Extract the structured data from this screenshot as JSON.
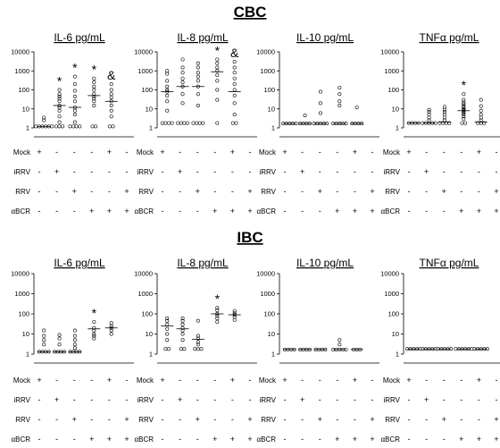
{
  "figure": {
    "sections": [
      {
        "title": "CBC"
      },
      {
        "title": "IBC"
      }
    ],
    "condition_rows": [
      {
        "label": "Mock",
        "signs": [
          "+",
          "-",
          "-",
          "-",
          "+",
          "-"
        ]
      },
      {
        "label": "iRRV",
        "signs": [
          "-",
          "+",
          "-",
          "-",
          "-",
          "-"
        ]
      },
      {
        "label": "RRV",
        "signs": [
          "-",
          "-",
          "+",
          "-",
          "-",
          "+"
        ]
      },
      {
        "label": "αBCR",
        "signs": [
          "-",
          "-",
          "-",
          "+",
          "+",
          "+"
        ]
      }
    ]
  },
  "chart_data": [
    {
      "type": "scatter",
      "section": "CBC",
      "title": "IL-6 pg/mL",
      "scale": "log",
      "yticks": [
        "1",
        "10",
        "100",
        "1000",
        "10000"
      ],
      "ylim": [
        1,
        10000
      ],
      "groups": [
        {
          "points": [
            1.2,
            1.2,
            1.2,
            1.2,
            1.2,
            1.2,
            2.5,
            3.5
          ],
          "median": 1.2
        },
        {
          "points": [
            1.2,
            1.2,
            1.2,
            2,
            4,
            8,
            12,
            15,
            25,
            35,
            45,
            60,
            100
          ],
          "median": 15
        },
        {
          "points": [
            1.2,
            1.2,
            1.2,
            1.2,
            2,
            5,
            8,
            12,
            25,
            45,
            90,
            200,
            500
          ],
          "median": 12
        },
        {
          "points": [
            1.2,
            1.2,
            15,
            25,
            35,
            45,
            60,
            100,
            150,
            250,
            400
          ],
          "median": 50
        },
        {
          "points": [
            1.2,
            1.2,
            4,
            8,
            15,
            25,
            40,
            60,
            100,
            200
          ],
          "median": 25
        }
      ],
      "annotations": [
        {
          "group": 2,
          "text": "*"
        },
        {
          "group": 3,
          "text": "*"
        },
        {
          "group": 4,
          "text": "*"
        },
        {
          "group": 5,
          "text": "&"
        }
      ]
    },
    {
      "type": "scatter",
      "section": "CBC",
      "title": "IL-8 pg/mL",
      "scale": "log",
      "yticks": [
        "1",
        "10",
        "100",
        "1000",
        "10000"
      ],
      "ylim": [
        1,
        10000
      ],
      "groups": [
        {
          "points": [
            1.8,
            1.8,
            1.8,
            1.8,
            8,
            25,
            50,
            80,
            100,
            150,
            300,
            700,
            1000
          ],
          "median": 80
        },
        {
          "points": [
            1.8,
            1.8,
            1.8,
            1.8,
            20,
            60,
            150,
            250,
            400,
            800,
            1500,
            4000
          ],
          "median": 150
        },
        {
          "points": [
            1.8,
            1.8,
            1.8,
            1.8,
            15,
            60,
            150,
            300,
            500,
            800,
            1500,
            2500
          ],
          "median": 150
        },
        {
          "points": [
            1.8,
            30,
            100,
            300,
            600,
            1000,
            1500,
            2500,
            4000
          ],
          "median": 900
        },
        {
          "points": [
            1.8,
            1.8,
            5,
            20,
            50,
            100,
            200,
            400,
            800,
            1500,
            3000
          ],
          "median": 80
        }
      ],
      "annotations": [
        {
          "group": 4,
          "text": "*"
        },
        {
          "group": 5,
          "text": "&"
        }
      ]
    },
    {
      "type": "scatter",
      "section": "CBC",
      "title": "IL-10 pg/mL",
      "scale": "log",
      "yticks": [
        "1",
        "10",
        "100",
        "1000",
        "10000"
      ],
      "ylim": [
        1,
        10000
      ],
      "groups": [
        {
          "points": [
            1.7,
            1.7,
            1.7,
            1.7,
            1.7
          ],
          "median": 1.7
        },
        {
          "points": [
            1.7,
            1.7,
            1.7,
            1.7,
            4.5
          ],
          "median": 1.7
        },
        {
          "points": [
            1.7,
            1.7,
            1.7,
            1.7,
            1.7,
            6,
            20,
            80
          ],
          "median": 1.7
        },
        {
          "points": [
            1.7,
            1.7,
            1.7,
            1.7,
            1.7,
            15,
            25,
            60,
            130
          ],
          "median": 1.7
        },
        {
          "points": [
            1.7,
            1.7,
            1.7,
            1.7,
            12
          ],
          "median": 1.7
        }
      ],
      "annotations": []
    },
    {
      "type": "scatter",
      "section": "CBC",
      "title": "TNFα pg/mL",
      "scale": "log",
      "yticks": [
        "1",
        "10",
        "100",
        "1000",
        "10000"
      ],
      "ylim": [
        1,
        10000
      ],
      "groups": [
        {
          "points": [
            1.8,
            1.8,
            1.8,
            1.8
          ],
          "median": 1.8
        },
        {
          "points": [
            1.8,
            1.8,
            1.8,
            1.8,
            1.8,
            2.5,
            3.5,
            5,
            7,
            9
          ],
          "median": 1.8
        },
        {
          "points": [
            1.8,
            1.8,
            1.8,
            1.8,
            2.5,
            3.5,
            5,
            7,
            9,
            13
          ],
          "median": 2
        },
        {
          "points": [
            1.8,
            1.8,
            3,
            4,
            5,
            6,
            7,
            8,
            9,
            10,
            12,
            14,
            18,
            22,
            30,
            60
          ],
          "median": 8
        },
        {
          "points": [
            1.8,
            1.8,
            1.8,
            2.5,
            3.5,
            5,
            8,
            14,
            30
          ],
          "median": 2
        }
      ],
      "annotations": [
        {
          "group": 4,
          "text": "*"
        }
      ]
    },
    {
      "type": "scatter",
      "section": "IBC",
      "title": "IL-6 pg/mL",
      "scale": "log",
      "yticks": [
        "1",
        "10",
        "100",
        "1000",
        "10000"
      ],
      "ylim": [
        1,
        10000
      ],
      "groups": [
        {
          "points": [
            1.3,
            1.3,
            1.3,
            1.3,
            3,
            5,
            8,
            15
          ],
          "median": 1.3
        },
        {
          "points": [
            1.3,
            1.3,
            1.3,
            1.3,
            3,
            6,
            9
          ],
          "median": 1.3
        },
        {
          "points": [
            1.3,
            1.3,
            1.3,
            1.3,
            2,
            3,
            5,
            8,
            15
          ],
          "median": 1.3
        },
        {
          "points": [
            6,
            8,
            10,
            15,
            20,
            40
          ],
          "median": 18
        },
        {
          "points": [
            10,
            15,
            20,
            25,
            35
          ],
          "median": 20
        }
      ],
      "annotations": [
        {
          "group": 4,
          "text": "*"
        }
      ]
    },
    {
      "type": "scatter",
      "section": "IBC",
      "title": "IL-8 pg/mL",
      "scale": "log",
      "yticks": [
        "1",
        "10",
        "100",
        "1000",
        "10000"
      ],
      "ylim": [
        1,
        10000
      ],
      "groups": [
        {
          "points": [
            1.8,
            1.8,
            5,
            10,
            18,
            30,
            45,
            60
          ],
          "median": 25
        },
        {
          "points": [
            1.8,
            1.8,
            5,
            10,
            15,
            20,
            30,
            45,
            60
          ],
          "median": 18
        },
        {
          "points": [
            1.8,
            1.8,
            1.8,
            3,
            4,
            6,
            8,
            45
          ],
          "median": 5.5
        },
        {
          "points": [
            40,
            60,
            80,
            100,
            150,
            200
          ],
          "median": 100
        },
        {
          "points": [
            50,
            70,
            90,
            110,
            140
          ],
          "median": 90
        }
      ],
      "annotations": [
        {
          "group": 4,
          "text": "*"
        }
      ]
    },
    {
      "type": "scatter",
      "section": "IBC",
      "title": "IL-10 pg/mL",
      "scale": "log",
      "yticks": [
        "1",
        "10",
        "100",
        "1000",
        "10000"
      ],
      "ylim": [
        1,
        10000
      ],
      "groups": [
        {
          "points": [
            1.7,
            1.7,
            1.7,
            1.7
          ],
          "median": 1.7
        },
        {
          "points": [
            1.7,
            1.7,
            1.7,
            1.7
          ],
          "median": 1.7
        },
        {
          "points": [
            1.7,
            1.7,
            1.7,
            1.7
          ],
          "median": 1.7
        },
        {
          "points": [
            1.7,
            1.7,
            1.7,
            1.7,
            1.7,
            3,
            5
          ],
          "median": 1.7
        },
        {
          "points": [
            1.7,
            1.7,
            1.7
          ],
          "median": 1.7
        }
      ],
      "annotations": []
    },
    {
      "type": "scatter",
      "section": "IBC",
      "title": "TNFα pg/mL",
      "scale": "log",
      "yticks": [
        "1",
        "10",
        "100",
        "1000",
        "10000"
      ],
      "ylim": [
        1,
        10000
      ],
      "groups": [
        {
          "points": [
            1.8,
            1.8,
            1.8,
            1.8,
            1.8
          ],
          "median": 1.8
        },
        {
          "points": [
            1.8,
            1.8,
            1.8,
            1.8,
            1.8
          ],
          "median": 1.8
        },
        {
          "points": [
            1.8,
            1.8,
            1.8,
            1.8,
            1.8
          ],
          "median": 1.8
        },
        {
          "points": [
            1.8,
            1.8,
            1.8,
            1.8,
            1.8,
            1.8
          ],
          "median": 1.8
        },
        {
          "points": [
            1.8,
            1.8,
            1.8,
            1.8,
            1.8
          ],
          "median": 1.8
        }
      ],
      "annotations": []
    }
  ]
}
